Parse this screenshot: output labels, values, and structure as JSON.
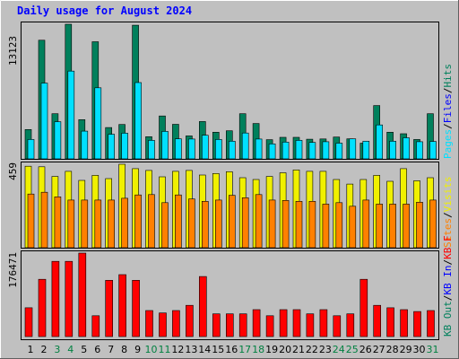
{
  "chart_data": {
    "type": "bar",
    "title": "Daily usage for August 2024",
    "categories": [
      "1",
      "2",
      "3",
      "4",
      "5",
      "6",
      "7",
      "8",
      "9",
      "10",
      "11",
      "12",
      "13",
      "14",
      "15",
      "16",
      "17",
      "18",
      "19",
      "20",
      "21",
      "22",
      "23",
      "24",
      "25",
      "26",
      "27",
      "28",
      "29",
      "30",
      "31"
    ],
    "weekend_days": [
      "3",
      "4",
      "10",
      "11",
      "17",
      "18",
      "24",
      "25",
      "31"
    ],
    "panels": [
      {
        "id": "hits_files_pages",
        "max_label": "13123",
        "ymax": 13123,
        "legend": [
          {
            "text": "Hits",
            "color": "#00805c"
          },
          {
            "text": "Files",
            "color": "#0000ff"
          },
          {
            "text": "Pages",
            "color": "#00e0ff"
          }
        ],
        "series": [
          {
            "name": "Hits",
            "color": "#00805c",
            "values": [
              2860,
              11570,
              4400,
              13123,
              3820,
              11420,
              3050,
              3350,
              13030,
              2160,
              4180,
              3370,
              2240,
              3640,
              2600,
              2740,
              4400,
              3450,
              1870,
              2100,
              2100,
              1920,
              1940,
              2130,
              1950,
              1530,
              5200,
              2600,
              2450,
              1890,
              4400
            ]
          },
          {
            "name": "Files",
            "color": "#0000ff",
            "values": [
              0,
              0,
              0,
              0,
              0,
              0,
              0,
              0,
              0,
              0,
              0,
              0,
              0,
              0,
              0,
              0,
              0,
              0,
              0,
              0,
              0,
              0,
              0,
              0,
              0,
              0,
              0,
              0,
              0,
              0,
              0
            ]
          },
          {
            "name": "Pages",
            "color": "#00e0ff",
            "values": [
              1890,
              7380,
              3620,
              8560,
              2700,
              6930,
              2400,
              2500,
              7440,
              1800,
              2680,
              1950,
              1930,
              2300,
              1890,
              1720,
              2520,
              1930,
              1460,
              1640,
              1800,
              1600,
              1670,
              1530,
              1950,
              1720,
              3310,
              1720,
              2060,
              1670,
              1700
            ]
          }
        ]
      },
      {
        "id": "visits_sites",
        "max_label": "459",
        "ymax": 459,
        "legend": [
          {
            "text": "Visits",
            "color": "#f0f000"
          },
          {
            "text": "Sites",
            "color": "#ff8000"
          }
        ],
        "series": [
          {
            "name": "Visits",
            "color": "#f0f000",
            "values": [
              448,
              445,
              392,
              420,
              370,
              398,
              380,
              459,
              435,
              425,
              390,
              420,
              425,
              400,
              408,
              418,
              385,
              375,
              392,
              412,
              428,
              420,
              420,
              375,
              350,
              375,
              398,
              365,
              435,
              368,
              385
            ]
          },
          {
            "name": "Sites",
            "color": "#ff8000",
            "values": [
              295,
              305,
              280,
              262,
              262,
              262,
              262,
              272,
              290,
              292,
              248,
              290,
              268,
              255,
              262,
              288,
              275,
              292,
              262,
              260,
              255,
              255,
              240,
              248,
              228,
              262,
              240,
              240,
              240,
              250,
              262
            ]
          }
        ]
      },
      {
        "id": "kb",
        "max_label": "176471",
        "ymax": 176471,
        "legend": [
          {
            "text": "KB F",
            "color": "#ff0000"
          },
          {
            "text": "KB In",
            "color": "#0000ff"
          },
          {
            "text": "KB Out",
            "color": "#00805c"
          }
        ],
        "series": [
          {
            "name": "KB F",
            "color": "#ff0000",
            "values": [
              61000,
              121000,
              159000,
              159000,
              176471,
              44000,
              119000,
              131000,
              119000,
              55000,
              50000,
              55000,
              66000,
              127000,
              48000,
              48000,
              48000,
              57000,
              44000,
              57000,
              57000,
              48000,
              57000,
              44000,
              48000,
              121000,
              66000,
              61000,
              57000,
              53000,
              55000
            ]
          },
          {
            "name": "KB In",
            "color": "#0000ff",
            "values": [
              0,
              0,
              0,
              0,
              0,
              0,
              0,
              0,
              0,
              0,
              0,
              0,
              0,
              0,
              0,
              0,
              0,
              0,
              0,
              0,
              0,
              0,
              0,
              0,
              0,
              0,
              0,
              0,
              0,
              0,
              0
            ]
          },
          {
            "name": "KB Out",
            "color": "#00805c",
            "values": [
              0,
              0,
              0,
              0,
              0,
              0,
              0,
              0,
              0,
              0,
              0,
              0,
              0,
              0,
              0,
              0,
              0,
              0,
              0,
              0,
              0,
              0,
              0,
              0,
              0,
              0,
              0,
              0,
              0,
              0,
              0
            ]
          }
        ]
      }
    ]
  },
  "colors": {
    "background": "#c0c0c0",
    "title": "#0000ff",
    "axis_label": "#000000",
    "weekday": "#000000",
    "weekend": "#008040",
    "legend_separator": "#000000"
  }
}
